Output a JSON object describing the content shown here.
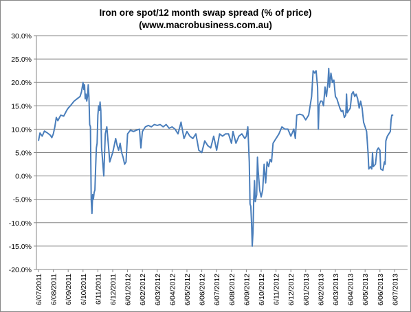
{
  "chart_data": {
    "type": "line",
    "title": "Iron ore spot/12 month swap spread (% of price)",
    "subtitle": "(www.macrobusiness.com.au)",
    "xlabel": "",
    "ylabel": "",
    "ylim": [
      -20,
      30
    ],
    "y_ticks": [
      "30.0%",
      "25.0%",
      "20.0%",
      "15.0%",
      "10.0%",
      "5.0%",
      "0.0%",
      "-5.0%",
      "-10.0%",
      "-15.0%",
      "-20.0%"
    ],
    "x_tick_labels": [
      "6/07/2011",
      "6/08/2011",
      "6/09/2011",
      "6/10/2011",
      "6/11/2011",
      "6/12/2011",
      "6/01/2012",
      "6/02/2012",
      "6/03/2012",
      "6/04/2012",
      "6/05/2012",
      "6/06/2012",
      "6/07/2012",
      "6/08/2012",
      "6/09/2012",
      "6/10/2012",
      "6/11/2012",
      "6/12/2012",
      "6/01/2013",
      "6/02/2013",
      "6/03/2013",
      "6/04/2013",
      "6/05/2013",
      "6/06/2013",
      "6/07/2013"
    ],
    "grid": {
      "horizontal": true,
      "vertical": false
    },
    "legend": "none",
    "line_color": "#4a7ebb",
    "series": [
      {
        "points": [
          [
            0.0,
            7.5
          ],
          [
            0.1,
            9.2
          ],
          [
            0.25,
            8.5
          ],
          [
            0.4,
            9.6
          ],
          [
            0.6,
            9.2
          ],
          [
            0.8,
            8.7
          ],
          [
            0.9,
            8.2
          ],
          [
            1.0,
            9.0
          ],
          [
            1.1,
            10.5
          ],
          [
            1.2,
            12.5
          ],
          [
            1.3,
            11.8
          ],
          [
            1.5,
            13.0
          ],
          [
            1.7,
            12.8
          ],
          [
            1.9,
            14.0
          ],
          [
            2.0,
            14.5
          ],
          [
            2.2,
            15.2
          ],
          [
            2.4,
            16.0
          ],
          [
            2.6,
            16.5
          ],
          [
            2.8,
            17.0
          ],
          [
            2.9,
            18.0
          ],
          [
            3.0,
            20.0
          ],
          [
            3.05,
            18.5
          ],
          [
            3.1,
            19.5
          ],
          [
            3.15,
            16.5
          ],
          [
            3.2,
            17.5
          ],
          [
            3.25,
            16.0
          ],
          [
            3.3,
            17.0
          ],
          [
            3.35,
            19.5
          ],
          [
            3.4,
            17.0
          ],
          [
            3.45,
            11.0
          ],
          [
            3.5,
            10.5
          ],
          [
            3.55,
            -5.0
          ],
          [
            3.6,
            -8.0
          ],
          [
            3.65,
            -4.0
          ],
          [
            3.7,
            -5.0
          ],
          [
            3.75,
            -3.5
          ],
          [
            3.8,
            -3.0
          ],
          [
            3.85,
            2.0
          ],
          [
            3.9,
            6.0
          ],
          [
            3.95,
            7.0
          ],
          [
            4.0,
            13.0
          ],
          [
            4.05,
            15.0
          ],
          [
            4.1,
            14.0
          ],
          [
            4.15,
            15.8
          ],
          [
            4.2,
            14.0
          ],
          [
            4.25,
            6.0
          ],
          [
            4.3,
            4.0
          ],
          [
            4.4,
            0.0
          ],
          [
            4.5,
            9.0
          ],
          [
            4.6,
            10.5
          ],
          [
            4.7,
            7.0
          ],
          [
            4.8,
            3.0
          ],
          [
            4.9,
            4.0
          ],
          [
            5.0,
            5.0
          ],
          [
            5.1,
            6.5
          ],
          [
            5.2,
            8.0
          ],
          [
            5.3,
            6.5
          ],
          [
            5.4,
            5.5
          ],
          [
            5.5,
            7.0
          ],
          [
            5.6,
            5.0
          ],
          [
            5.7,
            4.0
          ],
          [
            5.8,
            2.5
          ],
          [
            5.9,
            3.0
          ],
          [
            6.0,
            9.0
          ],
          [
            6.2,
            9.8
          ],
          [
            6.4,
            9.5
          ],
          [
            6.6,
            9.8
          ],
          [
            6.8,
            10.0
          ],
          [
            6.9,
            6.0
          ],
          [
            7.0,
            9.5
          ],
          [
            7.2,
            10.5
          ],
          [
            7.4,
            10.8
          ],
          [
            7.6,
            10.5
          ],
          [
            7.8,
            11.0
          ],
          [
            8.0,
            10.8
          ],
          [
            8.2,
            11.0
          ],
          [
            8.4,
            10.5
          ],
          [
            8.6,
            11.0
          ],
          [
            8.8,
            10.2
          ],
          [
            9.0,
            10.5
          ],
          [
            9.2,
            10.0
          ],
          [
            9.4,
            9.0
          ],
          [
            9.6,
            11.5
          ],
          [
            9.8,
            8.0
          ],
          [
            10.0,
            9.5
          ],
          [
            10.2,
            8.5
          ],
          [
            10.4,
            8.0
          ],
          [
            10.6,
            9.0
          ],
          [
            10.8,
            5.5
          ],
          [
            11.0,
            5.0
          ],
          [
            11.2,
            7.5
          ],
          [
            11.4,
            6.5
          ],
          [
            11.6,
            6.0
          ],
          [
            11.8,
            8.5
          ],
          [
            12.0,
            5.5
          ],
          [
            12.2,
            9.0
          ],
          [
            12.4,
            8.5
          ],
          [
            12.6,
            9.0
          ],
          [
            12.8,
            9.0
          ],
          [
            12.9,
            8.0
          ],
          [
            13.0,
            7.0
          ],
          [
            13.1,
            9.5
          ],
          [
            13.3,
            7.0
          ],
          [
            13.5,
            8.5
          ],
          [
            13.7,
            9.0
          ],
          [
            13.9,
            8.0
          ],
          [
            14.0,
            8.5
          ],
          [
            14.1,
            10.5
          ],
          [
            14.2,
            3.0
          ],
          [
            14.25,
            -6.0
          ],
          [
            14.3,
            -6.5
          ],
          [
            14.35,
            -10.0
          ],
          [
            14.4,
            -15.0
          ],
          [
            14.45,
            -12.0
          ],
          [
            14.5,
            -5.0
          ],
          [
            14.55,
            -1.0
          ],
          [
            14.6,
            -5.5
          ],
          [
            14.7,
            -4.0
          ],
          [
            14.75,
            4.0
          ],
          [
            14.8,
            1.0
          ],
          [
            14.9,
            -3.0
          ],
          [
            15.0,
            -4.5
          ],
          [
            15.1,
            -3.0
          ],
          [
            15.2,
            2.5
          ],
          [
            15.3,
            -1.5
          ],
          [
            15.4,
            3.0
          ],
          [
            15.5,
            2.0
          ],
          [
            15.6,
            3.5
          ],
          [
            15.7,
            3.0
          ],
          [
            15.8,
            7.0
          ],
          [
            16.0,
            8.0
          ],
          [
            16.2,
            9.0
          ],
          [
            16.4,
            10.5
          ],
          [
            16.6,
            10.0
          ],
          [
            16.8,
            10.0
          ],
          [
            17.0,
            8.5
          ],
          [
            17.2,
            10.0
          ],
          [
            17.3,
            8.0
          ],
          [
            17.4,
            13.0
          ],
          [
            17.6,
            13.2
          ],
          [
            17.8,
            13.0
          ],
          [
            18.0,
            12.0
          ],
          [
            18.2,
            13.0
          ],
          [
            18.4,
            17.0
          ],
          [
            18.5,
            22.5
          ],
          [
            18.6,
            22.0
          ],
          [
            18.7,
            22.5
          ],
          [
            18.8,
            19.0
          ],
          [
            18.85,
            10.0
          ],
          [
            18.9,
            15.0
          ],
          [
            19.0,
            16.0
          ],
          [
            19.1,
            16.0
          ],
          [
            19.2,
            15.0
          ],
          [
            19.3,
            19.0
          ],
          [
            19.4,
            17.0
          ],
          [
            19.5,
            20.0
          ],
          [
            19.55,
            23.0
          ],
          [
            19.6,
            19.0
          ],
          [
            19.7,
            22.0
          ],
          [
            19.8,
            20.0
          ],
          [
            19.9,
            20.5
          ],
          [
            20.0,
            17.0
          ],
          [
            20.1,
            16.5
          ],
          [
            20.2,
            15.5
          ],
          [
            20.3,
            14.5
          ],
          [
            20.4,
            13.8
          ],
          [
            20.5,
            14.0
          ],
          [
            20.6,
            12.5
          ],
          [
            20.7,
            13.0
          ],
          [
            20.75,
            17.5
          ],
          [
            20.8,
            13.5
          ],
          [
            20.9,
            14.0
          ],
          [
            21.0,
            14.5
          ],
          [
            21.1,
            17.5
          ],
          [
            21.2,
            18.0
          ],
          [
            21.3,
            17.0
          ],
          [
            21.4,
            17.5
          ],
          [
            21.5,
            16.5
          ],
          [
            21.6,
            14.5
          ],
          [
            21.7,
            16.0
          ],
          [
            21.8,
            14.5
          ],
          [
            21.9,
            11.5
          ],
          [
            22.0,
            10.5
          ],
          [
            22.1,
            9.5
          ],
          [
            22.2,
            5.0
          ],
          [
            22.25,
            1.5
          ],
          [
            22.35,
            2.0
          ],
          [
            22.45,
            1.5
          ],
          [
            22.5,
            5.0
          ],
          [
            22.55,
            2.0
          ],
          [
            22.7,
            2.5
          ],
          [
            22.8,
            5.5
          ],
          [
            22.9,
            6.0
          ],
          [
            23.0,
            5.5
          ],
          [
            23.05,
            1.5
          ],
          [
            23.2,
            1.2
          ],
          [
            23.3,
            3.0
          ],
          [
            23.35,
            2.5
          ],
          [
            23.4,
            7.5
          ],
          [
            23.5,
            8.5
          ],
          [
            23.6,
            9.0
          ],
          [
            23.7,
            9.5
          ],
          [
            23.75,
            12.0
          ],
          [
            23.8,
            13.0
          ],
          [
            23.9,
            13.0
          ]
        ]
      }
    ]
  }
}
